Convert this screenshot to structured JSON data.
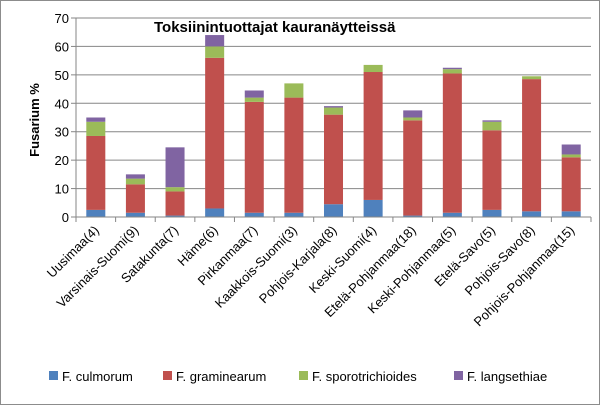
{
  "chart_data": {
    "type": "bar",
    "stacked": true,
    "title": "Toksiinintuottajat kauranäytteissä",
    "ylabel": "Fusarium %",
    "xlabel": "",
    "ylim": [
      0,
      70
    ],
    "yticks": [
      0,
      10,
      20,
      30,
      40,
      50,
      60,
      70
    ],
    "grid": true,
    "legend_position": "bottom",
    "categories": [
      "Uusimaa(4)",
      "Varsinais-Suomi(9)",
      "Satakunta(7)",
      "Häme(6)",
      "Pirkanmaa(7)",
      "Kaakkois-Suomi(3)",
      "Pohjois-Karjala(8)",
      "Keski-Suomi(4)",
      "Etelä-Pohjanmaa(18)",
      "Keski-Pohjanmaa(5)",
      "Etelä-Savo(5)",
      "Pohjois-Savo(8)",
      "Pohjois-Pohjanmaa(15)"
    ],
    "series": [
      {
        "name": "F. culmorum",
        "color": "#4F81BD",
        "values": [
          2.5,
          1.5,
          0.5,
          3,
          1.5,
          1.5,
          4.5,
          6,
          0.5,
          1.5,
          2.5,
          2,
          2
        ]
      },
      {
        "name": "F. graminearum",
        "color": "#C0504D",
        "values": [
          26,
          10,
          8.5,
          53,
          39,
          40.5,
          31.5,
          45,
          33.5,
          49,
          28,
          46.5,
          19
        ]
      },
      {
        "name": "F. sporotrichioides",
        "color": "#9BBB59",
        "values": [
          5,
          2,
          1.5,
          4,
          1.5,
          5,
          2.5,
          2.5,
          1,
          1.5,
          3,
          1,
          1
        ]
      },
      {
        "name": "F. langsethiae",
        "color": "#8064A2",
        "values": [
          1.5,
          1.5,
          14,
          4,
          2.5,
          0,
          0.5,
          0,
          2.5,
          0.5,
          0.5,
          0,
          3.5
        ]
      }
    ]
  }
}
